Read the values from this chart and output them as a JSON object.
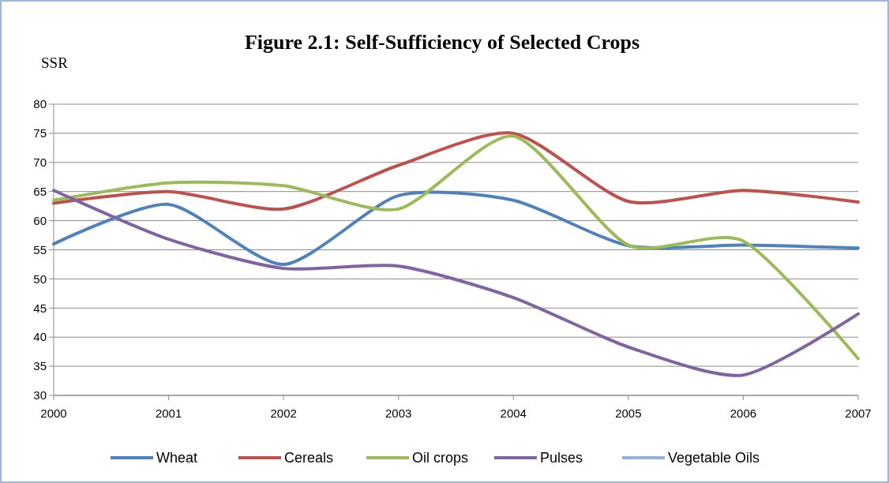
{
  "chart_data": {
    "type": "line",
    "title": "Figure 2.1: Self-Sufficiency of Selected Crops",
    "ylabel": "SSR",
    "x": [
      2000,
      2001,
      2002,
      2003,
      2004,
      2005,
      2006,
      2007
    ],
    "xlim": [
      2000,
      2007
    ],
    "xticks": [
      2000,
      2001,
      2002,
      2003,
      2004,
      2005,
      2006,
      2007
    ],
    "ylim": [
      30,
      80
    ],
    "yticks": [
      30,
      35,
      40,
      45,
      50,
      55,
      60,
      65,
      70,
      75,
      80
    ],
    "grid": "y",
    "legend": "bottom",
    "marker": "none",
    "line_style": "solid",
    "series": [
      {
        "name": "Wheat",
        "color": "#4f81bd",
        "values": [
          56,
          62.8,
          52.5,
          64.3,
          63.5,
          55.7,
          55.8,
          55.3
        ]
      },
      {
        "name": "Cereals",
        "color": "#c0504d",
        "values": [
          63,
          65,
          62,
          69.5,
          75,
          63.3,
          65.2,
          63.2
        ]
      },
      {
        "name": "Oil crops",
        "color": "#9bbb59",
        "values": [
          63.5,
          66.5,
          66,
          62,
          74.5,
          55.8,
          56.5,
          36.3
        ]
      },
      {
        "name": "Pulses",
        "color": "#8064a2",
        "values": [
          65.2,
          56.8,
          51.8,
          52.2,
          46.8,
          38.3,
          33.5,
          44
        ]
      },
      {
        "name": "Vegetable Oils",
        "color": "#95b3d7",
        "values": [
          null,
          null,
          null,
          null,
          null,
          null,
          null,
          null
        ]
      }
    ]
  }
}
